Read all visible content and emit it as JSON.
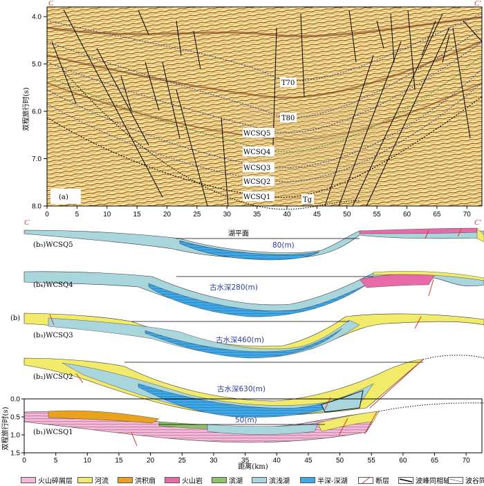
{
  "panel_a": {
    "corner_left": "C",
    "corner_right": "C'",
    "y_axis_title": "双程旅行时(s)",
    "y_ticks": [
      "4.0",
      "5.0",
      "6.0",
      "7.0",
      "8.0"
    ],
    "x_ticks": [
      "0",
      "5",
      "10",
      "15",
      "20",
      "25",
      "30",
      "35",
      "40",
      "45",
      "50",
      "55",
      "60",
      "65",
      "70"
    ],
    "panel_label": "(a)",
    "horizons": [
      "T70",
      "T80",
      "WCSQ5",
      "WCSQ4",
      "WCSQ3",
      "WCSQ2",
      "WCSQ1",
      "Tg"
    ]
  },
  "panel_b": {
    "label": "(b)",
    "corner_left": "C",
    "corner_right": "C'",
    "lake_surface": "湖平面",
    "sections": [
      {
        "name": "(b₅)WCSQ5",
        "depth": "80(m)"
      },
      {
        "name": "(b₄)WCSQ4",
        "depth": "古水深280(m)"
      },
      {
        "name": "(b₃)WCSQ3",
        "depth": "古水深460(m)"
      },
      {
        "name": "(b₂)WCSQ2",
        "depth": "古水深630(m)"
      },
      {
        "name": "(b₁)WCSQ1",
        "depth": "50(m)"
      }
    ],
    "y_axis_title": "双程旅行时(s)",
    "y_ticks": [
      "0.0",
      "0.5",
      "1.0",
      "1.5"
    ],
    "x_ticks": [
      "0",
      "5",
      "10",
      "15",
      "20",
      "25",
      "30",
      "35",
      "40",
      "45",
      "50",
      "55",
      "60",
      "65",
      "70"
    ],
    "x_axis_title": "距离(km)"
  },
  "legend": [
    {
      "label": "火山碎屑层",
      "color": "#f4b8d8"
    },
    {
      "label": "河流",
      "color": "#f2ea6a"
    },
    {
      "label": "洪积扇",
      "color": "#e8a21e"
    },
    {
      "label": "火山岩",
      "color": "#e86aa8"
    },
    {
      "label": "滨湖",
      "color": "#8fc16a"
    },
    {
      "label": "滨浅湖",
      "color": "#a9d6dd"
    },
    {
      "label": "半深-深湖",
      "color": "#3fa9e8"
    },
    {
      "label": "断层",
      "color": "#d0392b"
    },
    {
      "label": "波峰同相轴",
      "color": "#000000"
    },
    {
      "label": "波谷同相轴",
      "color": "#ffffff"
    }
  ]
}
